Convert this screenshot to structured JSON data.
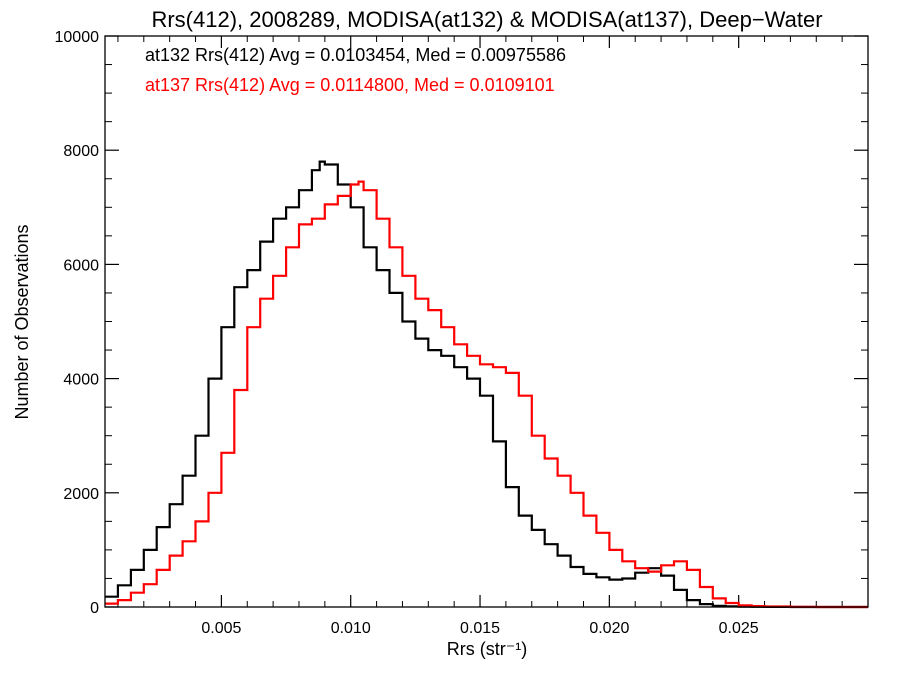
{
  "chart_data": {
    "type": "line",
    "title": "Rrs(412), 2008289, MODISA(at132) & MODISA(at137), Deep−Water",
    "xlabel": "Rrs (str⁻¹)",
    "ylabel": "Number of Observations",
    "xlim": [
      0.0005,
      0.03
    ],
    "ylim": [
      0,
      10000
    ],
    "x_ticks": [
      0.005,
      0.01,
      0.015,
      0.02,
      0.025
    ],
    "x_tick_labels": [
      "0.005",
      "0.010",
      "0.015",
      "0.020",
      "0.025"
    ],
    "y_ticks": [
      0,
      2000,
      4000,
      6000,
      8000,
      10000
    ],
    "y_tick_labels": [
      "0",
      "2000",
      "4000",
      "6000",
      "8000",
      "10000"
    ],
    "grid": false,
    "annotations": [
      {
        "text": "at132 Rrs(412) Avg = 0.0103454, Med = 0.00975586",
        "color": "#000000"
      },
      {
        "text": "at137 Rrs(412) Avg = 0.0114800, Med = 0.0109101",
        "color": "#ff0000"
      }
    ],
    "series": [
      {
        "color": "#000000",
        "x": [
          0.0005,
          0.001,
          0.0015,
          0.002,
          0.0025,
          0.003,
          0.0035,
          0.004,
          0.0045,
          0.005,
          0.0055,
          0.006,
          0.0065,
          0.007,
          0.0075,
          0.008,
          0.0085,
          0.0088,
          0.009,
          0.0095,
          0.01,
          0.0105,
          0.011,
          0.0115,
          0.012,
          0.0125,
          0.013,
          0.0135,
          0.014,
          0.0145,
          0.015,
          0.0155,
          0.016,
          0.0165,
          0.017,
          0.0175,
          0.018,
          0.0185,
          0.019,
          0.0195,
          0.02,
          0.0205,
          0.021,
          0.0215,
          0.022,
          0.0225,
          0.023,
          0.0235,
          0.024,
          0.0245,
          0.025,
          0.0255,
          0.026,
          0.027,
          0.028,
          0.029,
          0.03
        ],
        "values": [
          180,
          380,
          650,
          1000,
          1400,
          1800,
          2300,
          3000,
          4000,
          4900,
          5600,
          5900,
          6400,
          6800,
          7000,
          7300,
          7650,
          7800,
          7750,
          7400,
          7000,
          6300,
          5900,
          5500,
          5000,
          4700,
          4500,
          4400,
          4200,
          4000,
          3700,
          2900,
          2100,
          1600,
          1350,
          1100,
          900,
          700,
          580,
          520,
          480,
          500,
          600,
          680,
          550,
          300,
          120,
          50,
          20,
          10,
          5,
          3,
          2,
          0,
          0,
          0,
          0
        ]
      },
      {
        "color": "#ff0000",
        "x": [
          0.0005,
          0.001,
          0.0015,
          0.002,
          0.0025,
          0.003,
          0.0035,
          0.004,
          0.0045,
          0.005,
          0.0055,
          0.006,
          0.0065,
          0.007,
          0.0075,
          0.008,
          0.0085,
          0.009,
          0.0095,
          0.01,
          0.0103,
          0.0105,
          0.011,
          0.0115,
          0.012,
          0.0125,
          0.013,
          0.0135,
          0.014,
          0.0145,
          0.015,
          0.0155,
          0.016,
          0.0165,
          0.017,
          0.0175,
          0.018,
          0.0185,
          0.019,
          0.0195,
          0.02,
          0.0205,
          0.021,
          0.0215,
          0.022,
          0.0225,
          0.023,
          0.0235,
          0.024,
          0.0245,
          0.025,
          0.0255,
          0.026,
          0.027,
          0.028,
          0.029,
          0.03
        ],
        "values": [
          60,
          120,
          250,
          400,
          650,
          900,
          1150,
          1500,
          2000,
          2700,
          3800,
          4900,
          5400,
          5800,
          6300,
          6700,
          6800,
          7050,
          7200,
          7400,
          7450,
          7300,
          6800,
          6300,
          5800,
          5400,
          5200,
          4900,
          4600,
          4400,
          4250,
          4200,
          4100,
          3700,
          3000,
          2600,
          2300,
          2000,
          1600,
          1300,
          1000,
          800,
          680,
          620,
          730,
          800,
          650,
          350,
          150,
          70,
          30,
          15,
          8,
          3,
          0,
          0,
          0
        ]
      }
    ]
  }
}
